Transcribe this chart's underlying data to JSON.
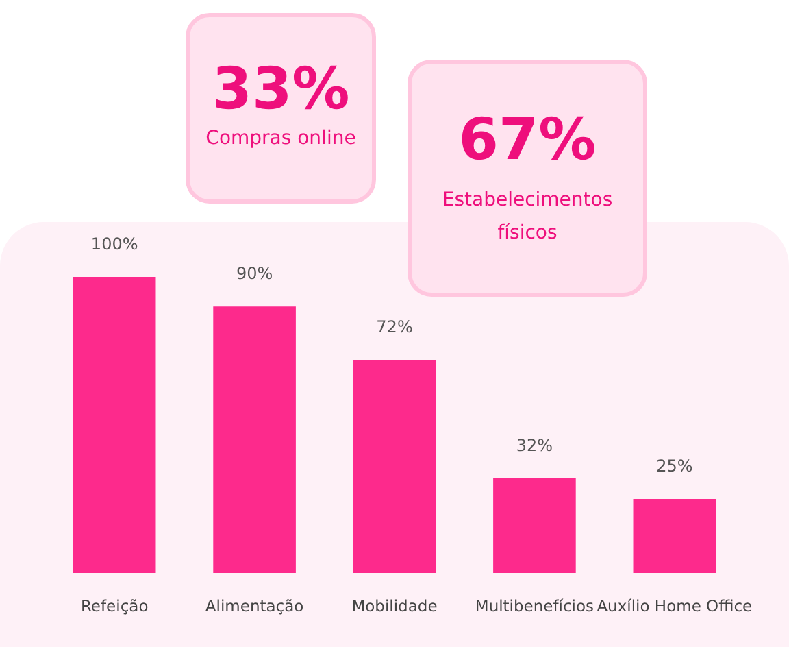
{
  "chart_data": {
    "type": "bar",
    "categories": [
      "Refeição",
      "Alimentação",
      "Mobilidade",
      "Multibenefícios",
      "Auxílio Home Office"
    ],
    "values": [
      100,
      90,
      72,
      32,
      25
    ],
    "value_labels": [
      "100%",
      "90%",
      "72%",
      "32%",
      "25%"
    ],
    "color": "#fd2a8c",
    "annotations": [
      "33%",
      "Compras online",
      "67%",
      "Estabelecimentos físicos"
    ]
  }
}
